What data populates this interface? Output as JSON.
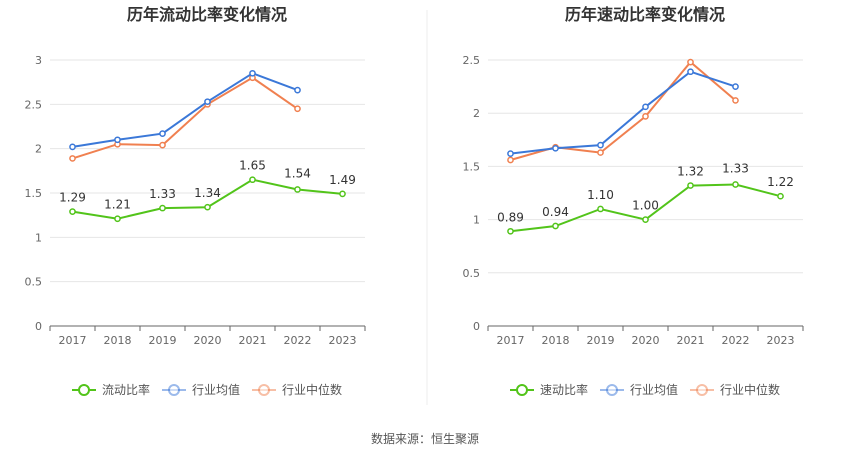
{
  "source": "数据来源：恒生聚源",
  "chart_data": [
    {
      "type": "line",
      "title": "历年流动比率变化情况",
      "categories": [
        "2017",
        "2018",
        "2019",
        "2020",
        "2021",
        "2022",
        "2023"
      ],
      "ylim": [
        0,
        3
      ],
      "yticks": [
        "0",
        "0.5",
        "1",
        "1.5",
        "2",
        "2.5",
        "3"
      ],
      "yticks_num": [
        0,
        0.5,
        1,
        1.5,
        2,
        2.5,
        3
      ],
      "grid": true,
      "legend_position": "bottom",
      "series": [
        {
          "name": "流动比率",
          "color": "#52c41a",
          "values": [
            1.29,
            1.21,
            1.33,
            1.34,
            1.65,
            1.54,
            1.49
          ],
          "labels": [
            "1.29",
            "1.21",
            "1.33",
            "1.34",
            "1.65",
            "1.54",
            "1.49"
          ]
        },
        {
          "name": "行业均值",
          "color": "#3b78d8",
          "values": [
            2.02,
            2.1,
            2.17,
            2.53,
            2.85,
            2.66,
            null
          ]
        },
        {
          "name": "行业中位数",
          "color": "#f08050",
          "values": [
            1.89,
            2.05,
            2.04,
            2.5,
            2.8,
            2.45,
            null
          ]
        }
      ]
    },
    {
      "type": "line",
      "title": "历年速动比率变化情况",
      "categories": [
        "2017",
        "2018",
        "2019",
        "2020",
        "2021",
        "2022",
        "2023"
      ],
      "ylim": [
        0,
        2.5
      ],
      "yticks": [
        "0",
        "0.5",
        "1",
        "1.5",
        "2",
        "2.5"
      ],
      "yticks_num": [
        0,
        0.5,
        1,
        1.5,
        2,
        2.5
      ],
      "grid": true,
      "legend_position": "bottom",
      "series": [
        {
          "name": "速动比率",
          "color": "#52c41a",
          "values": [
            0.89,
            0.94,
            1.1,
            1.0,
            1.32,
            1.33,
            1.22
          ],
          "labels": [
            "0.89",
            "0.94",
            "1.10",
            "1.00",
            "1.32",
            "1.33",
            "1.22"
          ]
        },
        {
          "name": "行业均值",
          "color": "#3b78d8",
          "values": [
            1.62,
            1.67,
            1.7,
            2.06,
            2.39,
            2.25,
            null
          ]
        },
        {
          "name": "行业中位数",
          "color": "#f08050",
          "values": [
            1.56,
            1.68,
            1.63,
            1.97,
            2.48,
            2.12,
            null
          ]
        }
      ]
    }
  ]
}
